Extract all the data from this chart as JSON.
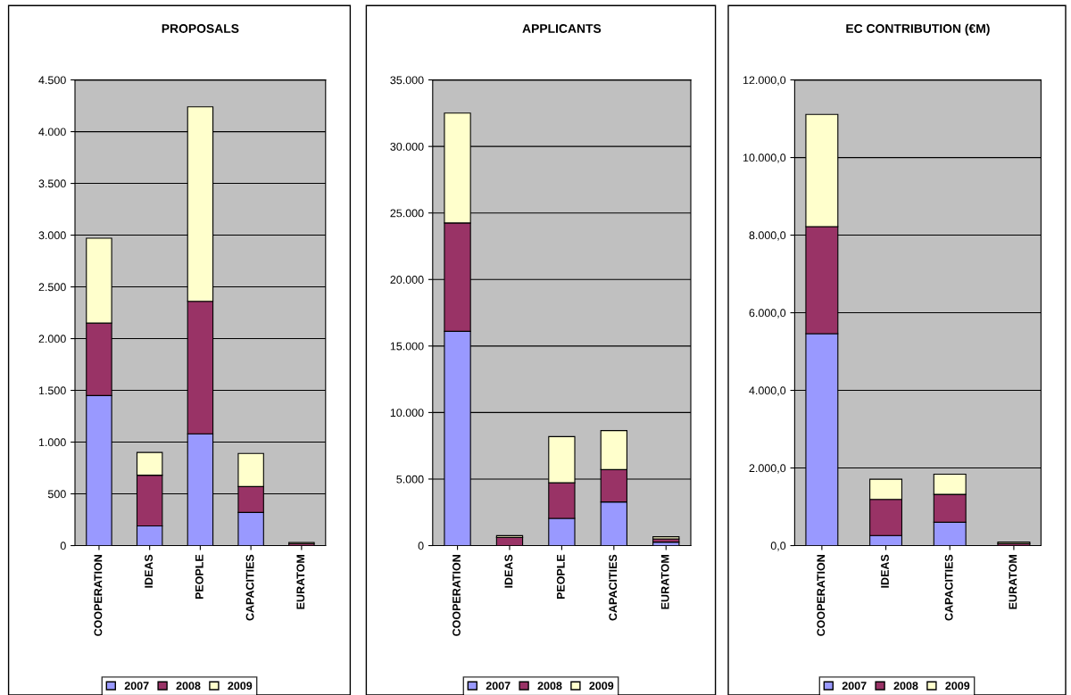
{
  "chart_data": [
    {
      "type": "bar",
      "stacked": true,
      "title": "PROPOSALS",
      "categories": [
        "COOPERATION",
        "IDEAS",
        "PEOPLE",
        "CAPACITIES",
        "EURATOM"
      ],
      "series": [
        {
          "name": "2007",
          "color": "#9999ff",
          "values": [
            1450,
            190,
            1080,
            320,
            null
          ]
        },
        {
          "name": "2008",
          "color": "#993366",
          "values": [
            700,
            490,
            1280,
            250,
            20
          ]
        },
        {
          "name": "2009",
          "color": "#ffffcc",
          "values": [
            820,
            220,
            1880,
            320,
            10
          ]
        }
      ],
      "ylim": [
        0,
        4500
      ],
      "yticks": [
        0,
        {
          "value": 500,
          "label": "500"
        },
        {
          "value": 1000,
          "label": "1.000"
        },
        {
          "value": 1500,
          "label": "1.500"
        },
        {
          "value": 2000,
          "label": "2.000"
        },
        {
          "value": 2500,
          "label": "2.500"
        },
        {
          "value": 3000,
          "label": "3.000"
        },
        {
          "value": 3500,
          "label": "3.500"
        },
        {
          "value": 4000,
          "label": "4.000"
        },
        {
          "value": 4500,
          "label": "4.500"
        }
      ],
      "grid": "y",
      "legend": "bottom"
    },
    {
      "type": "bar",
      "stacked": true,
      "title": "APPLICANTS",
      "categories": [
        "COOPERATION",
        "IDEAS",
        "PEOPLE",
        "CAPACITIES",
        "EURATOM"
      ],
      "series": [
        {
          "name": "2007",
          "color": "#9999ff",
          "values": [
            16100,
            null,
            2050,
            3280,
            260
          ]
        },
        {
          "name": "2008",
          "color": "#993366",
          "values": [
            8150,
            610,
            2670,
            2430,
            240
          ]
        },
        {
          "name": "2009",
          "color": "#ffffcc",
          "values": [
            8260,
            140,
            3470,
            2930,
            160
          ]
        }
      ],
      "ylim": [
        0,
        35000
      ],
      "yticks": [
        0,
        {
          "value": 5000,
          "label": "5.000"
        },
        {
          "value": 10000,
          "label": "10.000"
        },
        {
          "value": 15000,
          "label": "15.000"
        },
        {
          "value": 20000,
          "label": "20.000"
        },
        {
          "value": 25000,
          "label": "25.000"
        },
        {
          "value": 30000,
          "label": "30.000"
        },
        {
          "value": 35000,
          "label": "35.000"
        }
      ],
      "grid": "y",
      "legend": "bottom"
    },
    {
      "type": "bar",
      "stacked": true,
      "title": "EC CONTRIBUTION (€M)",
      "categories": [
        "COOPERATION",
        "IDEAS",
        "CAPACITIES",
        "EURATOM"
      ],
      "series": [
        {
          "name": "2007",
          "color": "#9999ff",
          "values": [
            5460,
            260,
            600,
            null
          ]
        },
        {
          "name": "2008",
          "color": "#993366",
          "values": [
            2760,
            930,
            720,
            50
          ]
        },
        {
          "name": "2009",
          "color": "#ffffcc",
          "values": [
            2890,
            520,
            520,
            40
          ]
        }
      ],
      "ylim": [
        0,
        12000
      ],
      "yticks": [
        {
          "value": 0,
          "label": "0,0"
        },
        {
          "value": 2000,
          "label": "2.000,0"
        },
        {
          "value": 4000,
          "label": "4.000,0"
        },
        {
          "value": 6000,
          "label": "6.000,0"
        },
        {
          "value": 8000,
          "label": "8.000,0"
        },
        {
          "value": 10000,
          "label": "10.000,0"
        },
        {
          "value": 12000,
          "label": "12.000,0"
        }
      ],
      "grid": "y",
      "legend": "bottom"
    }
  ]
}
